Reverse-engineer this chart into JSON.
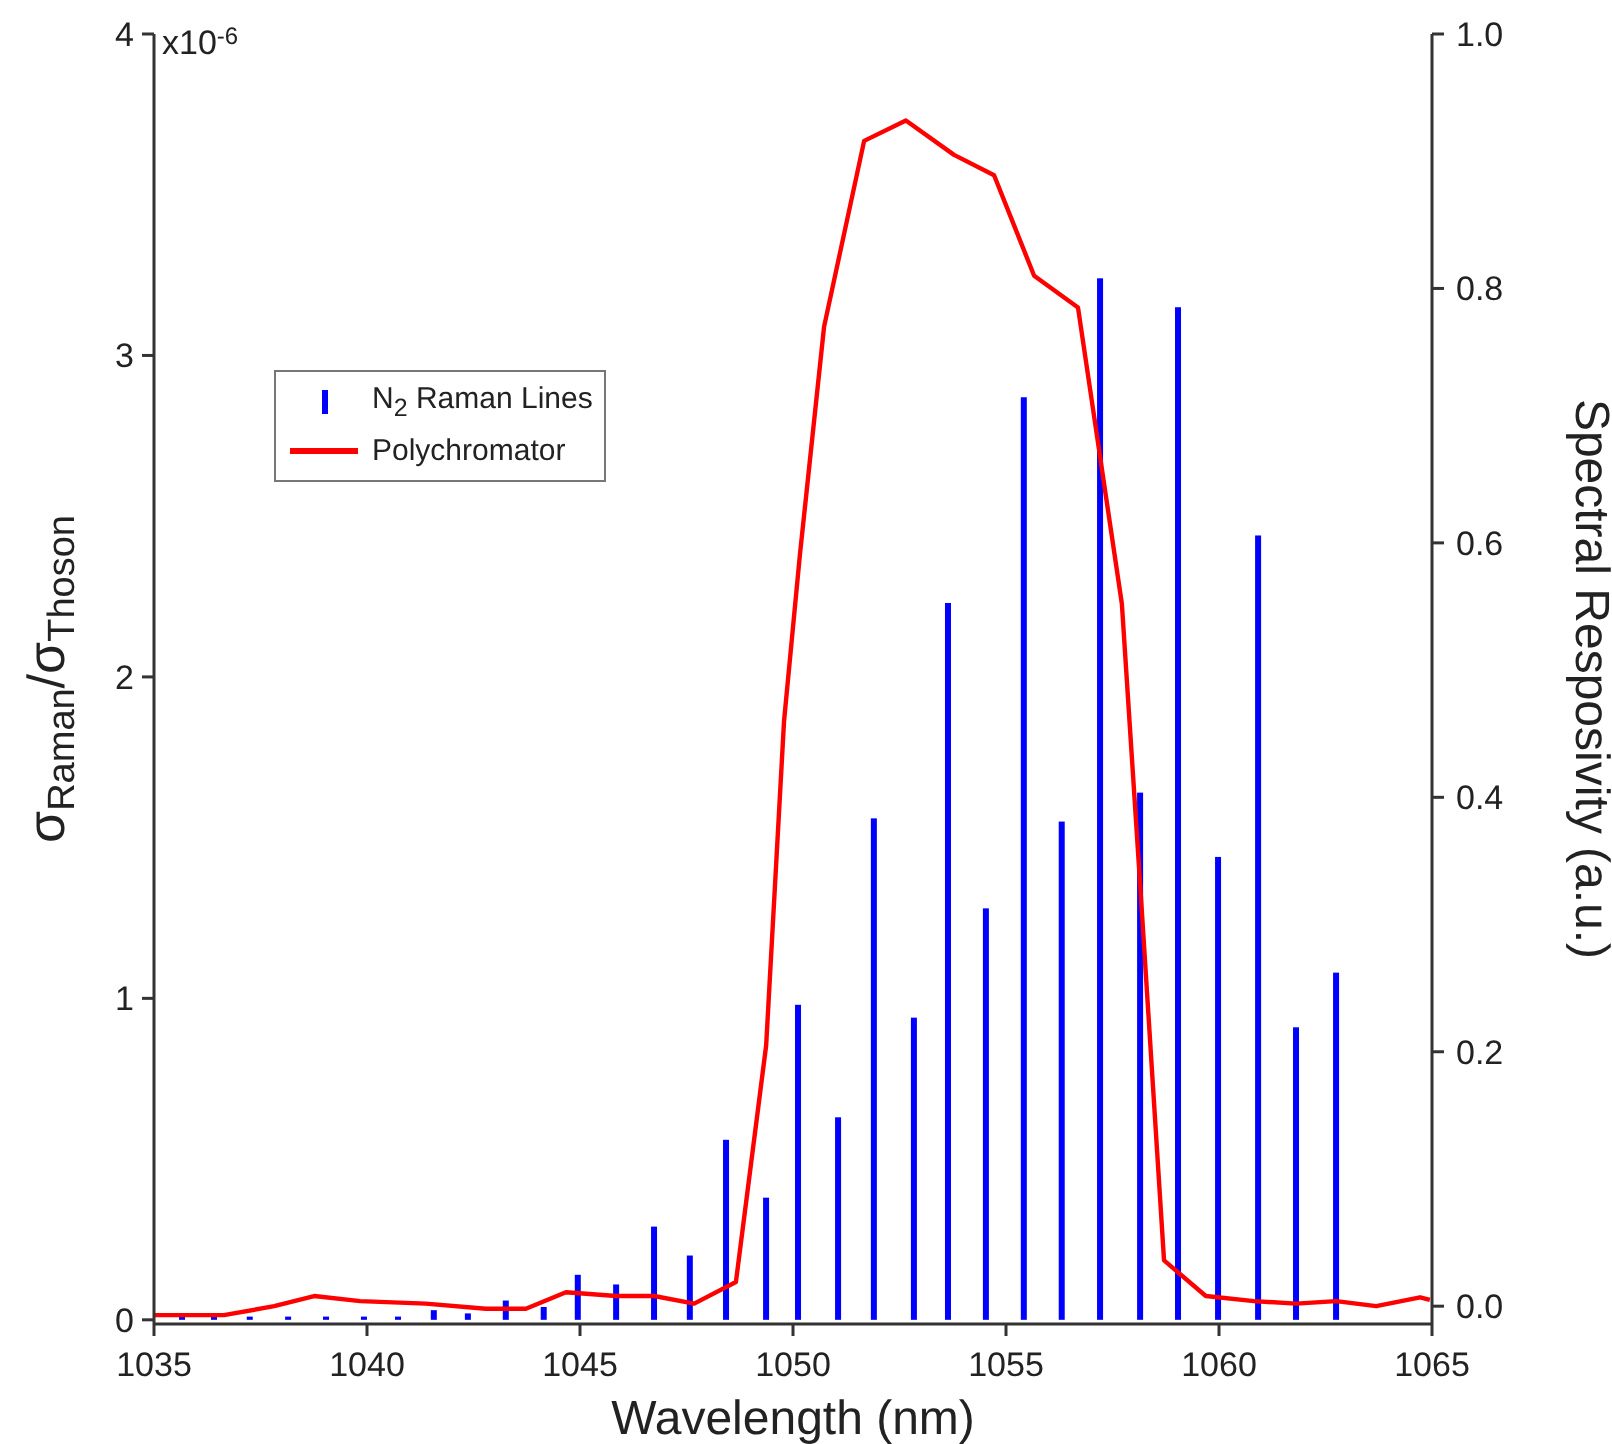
{
  "chart_data": {
    "type": "bar",
    "xlabel": "Wavelength (nm)",
    "ylabel": "σ$_{Raman}$/σ$_{Thoson}$",
    "y2label": "Spectral Resposivity (a.u.)",
    "annotations": [
      "x10$^{-6}$"
    ],
    "xlim": [
      1035,
      1065
    ],
    "xticks": [
      1035,
      1040,
      1045,
      1050,
      1055,
      1060,
      1065
    ],
    "ylim": [
      -0.013,
      4
    ],
    "yticks": [
      0,
      1,
      2,
      3,
      4
    ],
    "y2lim": [
      -0.014,
      1.0
    ],
    "y2ticks": [
      {
        "value": 0,
        "label": "0.0"
      },
      0.2,
      0.4,
      0.6,
      0.8,
      {
        "value": 1,
        "label": "1.0"
      }
    ],
    "legend": "left",
    "series": [
      {
        "name": "N$_{2}$ Raman Lines",
        "color": "#0000ff",
        "x": [
          1035.66,
          1036.41,
          1037.25,
          1038.15,
          1039.04,
          1039.93,
          1040.73,
          1041.57,
          1042.37,
          1043.26,
          1044.15,
          1044.95,
          1045.85,
          1046.74,
          1047.58,
          1048.43,
          1049.37,
          1050.12,
          1051.06,
          1051.9,
          1052.84,
          1053.64,
          1054.53,
          1055.42,
          1056.31,
          1057.21,
          1058.15,
          1059.04,
          1059.98,
          1060.92,
          1061.81,
          1062.75
        ],
        "values": [
          0.01,
          0.01,
          0.01,
          0.01,
          0.01,
          0.01,
          0.01,
          0.03,
          0.02,
          0.06,
          0.04,
          0.14,
          0.11,
          0.29,
          0.2,
          0.56,
          0.38,
          0.98,
          0.63,
          1.56,
          0.94,
          2.23,
          1.28,
          2.87,
          1.55,
          3.24,
          1.64,
          3.15,
          1.44,
          2.44,
          0.91,
          1.08
        ]
      },
      {
        "name": "Polychromator",
        "type": "line",
        "axis": "y2",
        "color": "#ff0000",
        "x": [
          1035,
          1036.64,
          1037.82,
          1038.76,
          1039.84,
          1041.38,
          1042.79,
          1043.73,
          1044.67,
          1045.85,
          1046.74,
          1047.68,
          1048.66,
          1049.37,
          1049.79,
          1050.16,
          1050.73,
          1051.67,
          1052.65,
          1053.78,
          1054.72,
          1055.66,
          1056.69,
          1057.72,
          1058.15,
          1058.71,
          1059.69,
          1060.82,
          1061.81,
          1062.75,
          1063.69,
          1064.72,
          1064.95
        ],
        "values": [
          -0.007,
          -0.007,
          0,
          0.008,
          0.004,
          0.002,
          -0.002,
          -0.002,
          0.011,
          0.008,
          0.008,
          0.002,
          0.019,
          0.205,
          0.46,
          0.59,
          0.77,
          0.916,
          0.932,
          0.905,
          0.889,
          0.81,
          0.785,
          0.552,
          0.331,
          0.036,
          0.008,
          0.004,
          0.002,
          0.004,
          0,
          0.007,
          0.005
        ]
      }
    ]
  }
}
